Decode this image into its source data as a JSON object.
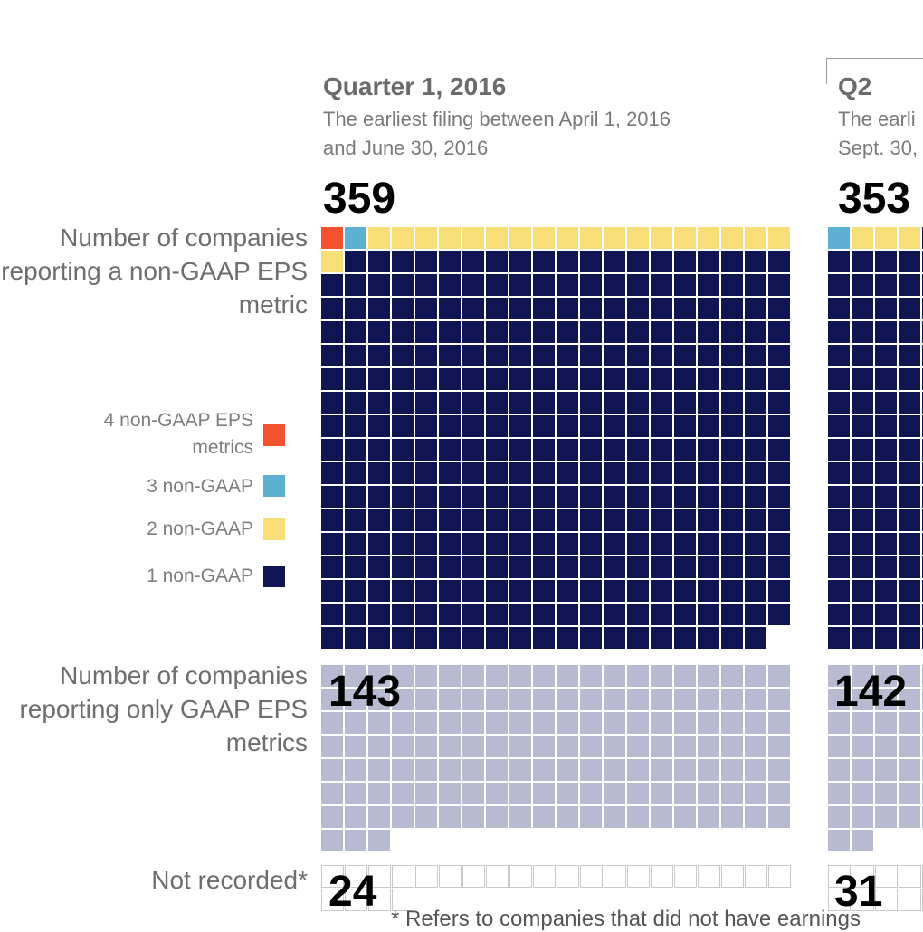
{
  "colors": {
    "metric4": "#f4522d",
    "metric3": "#5eb0d3",
    "metric2": "#f8de77",
    "metric1": "#0f1452",
    "gaap_only": "#b8bad2",
    "not_recorded_fill": "#ffffff",
    "not_recorded_stroke": "#c9c9c9"
  },
  "row_labels": {
    "non_gaap": "Number of companies reporting a non-GAAP EPS metric",
    "gaap_only": "Number of companies reporting only GAAP EPS metrics",
    "not_recorded": "Not recorded*"
  },
  "legend": [
    {
      "label": "4 non-GAAP EPS metrics",
      "color": "#f4522d"
    },
    {
      "label": "3 non-GAAP",
      "color": "#5eb0d3"
    },
    {
      "label": "2 non-GAAP",
      "color": "#f8de77"
    },
    {
      "label": "1 non-GAAP",
      "color": "#0f1452"
    }
  ],
  "footnote": "* Refers to companies that did not have earnings",
  "chart_data": {
    "type": "waffle",
    "unit": "1 square = 1 company",
    "panels": [
      {
        "title": "Quarter 1, 2016",
        "subtitle_line1": "The earliest filing between April 1, 2016",
        "subtitle_line2": "and June 30, 2016",
        "non_gaap_total": 359,
        "non_gaap_breakdown": {
          "4 non-GAAP": 1,
          "3 non-GAAP": 1,
          "2 non-GAAP": 19,
          "1 non-GAAP": 338
        },
        "gaap_only": 143,
        "not_recorded": 24
      },
      {
        "title": "Q2",
        "subtitle_line1": "The earli",
        "subtitle_line2": "Sept. 30,",
        "non_gaap_total": 353,
        "non_gaap_breakdown": {
          "3 non-GAAP": 1,
          "2 non-GAAP": 3
        },
        "gaap_only": 142,
        "not_recorded": 31
      }
    ]
  }
}
